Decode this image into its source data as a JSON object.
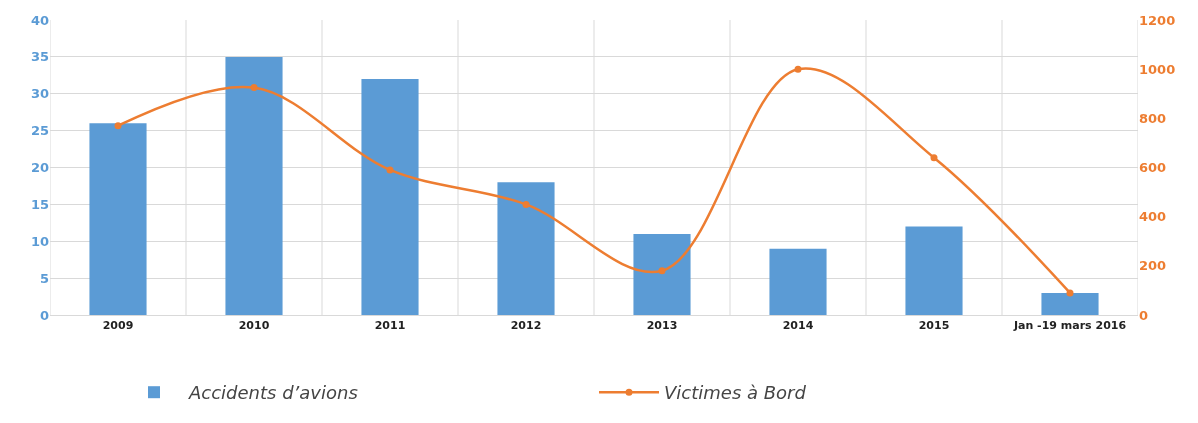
{
  "chart_data": {
    "type": "bar",
    "categories": [
      "2009",
      "2010",
      "2011",
      "2012",
      "2013",
      "2014",
      "2015",
      "Jan -19 mars 2016"
    ],
    "series": [
      {
        "name": "Accidents d’avions",
        "color": "#5b9bd5",
        "values": [
          26,
          35,
          32,
          18,
          11,
          9,
          12,
          3
        ]
      },
      {
        "name": "Victimes à Bord",
        "type": "line",
        "axis": "y2",
        "color": "#ed7d31",
        "marker": "circle",
        "values": [
          770,
          925,
          590,
          450,
          180,
          1000,
          640,
          90
        ]
      }
    ],
    "ylim": [
      0,
      40
    ],
    "yticks": [
      0,
      5,
      10,
      15,
      20,
      25,
      30,
      35,
      40
    ],
    "y2lim": [
      0,
      1200
    ],
    "y2ticks": [
      0,
      200,
      400,
      600,
      800,
      1000,
      1200
    ],
    "grid": true,
    "legend": "bottom"
  }
}
